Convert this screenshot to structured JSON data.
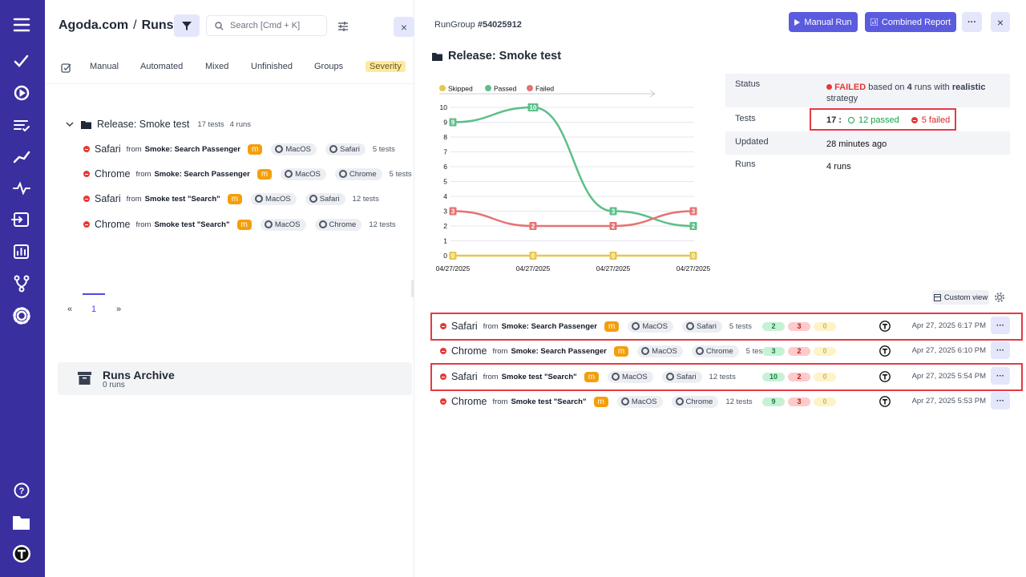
{
  "header": {
    "project": "Agoda.com",
    "separator": "/",
    "page": "Runs",
    "search_placeholder": "Search [Cmd + K]"
  },
  "tabs": [
    "Manual",
    "Automated",
    "Mixed",
    "Unfinished",
    "Groups",
    "Severity"
  ],
  "labels": {
    "from": "from",
    "more": "···",
    "close": "×"
  },
  "group": {
    "name": "Release: Smoke test",
    "tests": "17 tests",
    "runs": "4 runs"
  },
  "runs": [
    {
      "browser": "Safari",
      "source": "Smoke: Search Passenger",
      "badge": "m",
      "os": "MacOS",
      "env": "Safari",
      "tests": "5 tests",
      "passed": 2,
      "failed": 3,
      "skipped": 0,
      "date": "Apr 27, 2025 6:17 PM",
      "highlighted": true
    },
    {
      "browser": "Chrome",
      "source": "Smoke: Search Passenger",
      "badge": "m",
      "os": "MacOS",
      "env": "Chrome",
      "tests": "5 tests",
      "passed": 3,
      "failed": 2,
      "skipped": 0,
      "date": "Apr 27, 2025 6:10 PM",
      "highlighted": false
    },
    {
      "browser": "Safari",
      "source": "Smoke test \"Search\"",
      "badge": "m",
      "os": "MacOS",
      "env": "Safari",
      "tests": "12 tests",
      "passed": 10,
      "failed": 2,
      "skipped": 0,
      "date": "Apr 27, 2025 5:54 PM",
      "highlighted": true
    },
    {
      "browser": "Chrome",
      "source": "Smoke test \"Search\"",
      "badge": "m",
      "os": "MacOS",
      "env": "Chrome",
      "tests": "12 tests",
      "passed": 9,
      "failed": 3,
      "skipped": 0,
      "date": "Apr 27, 2025 5:53 PM",
      "highlighted": false
    }
  ],
  "pagination": {
    "prev": "«",
    "page": "1",
    "next": "»"
  },
  "archive": {
    "title": "Runs Archive",
    "count": "0 runs"
  },
  "detail": {
    "rungroup_label": "RunGroup",
    "rungroup_id": "#54025912",
    "manual_run": "Manual Run",
    "combined_report": "Combined Report",
    "title": "Release: Smoke test",
    "status": {
      "label": "Status",
      "value": "FAILED",
      "text1": "based on",
      "runs": "4",
      "text2": "runs with",
      "strategy": "realistic",
      "text3": "strategy"
    },
    "tests": {
      "label": "Tests",
      "total": "17 :",
      "passed": "12 passed",
      "failed": "5 failed"
    },
    "updated": {
      "label": "Updated",
      "value": "28 minutes ago"
    },
    "runs": {
      "label": "Runs",
      "value": "4 runs"
    },
    "custom_view": "Custom view"
  },
  "chart_data": {
    "type": "line",
    "categories": [
      "04/27/2025",
      "04/27/2025",
      "04/27/2025",
      "04/27/2025"
    ],
    "series": [
      {
        "name": "Skipped",
        "color": "#e6c84e",
        "values": [
          0,
          0,
          0,
          0
        ]
      },
      {
        "name": "Passed",
        "color": "#5dbf88",
        "values": [
          9,
          10,
          3,
          2
        ]
      },
      {
        "name": "Failed",
        "color": "#e57373",
        "values": [
          3,
          2,
          2,
          3
        ]
      }
    ],
    "ylim": [
      0,
      10
    ],
    "yticks": [
      0,
      1,
      2,
      3,
      4,
      5,
      6,
      7,
      8,
      9,
      10
    ],
    "grid": true
  }
}
